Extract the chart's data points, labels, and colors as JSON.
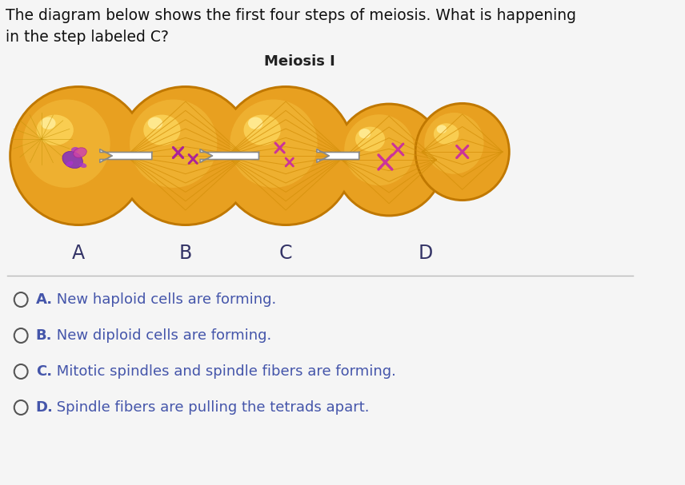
{
  "title_text": "The diagram below shows the first four steps of meiosis. What is happening\nin the step labeled C?",
  "subtitle": "Meiosis I",
  "bg_color": "#f5f5f5",
  "answers": [
    [
      "A.",
      " New haploid cells are forming."
    ],
    [
      "B.",
      " New diploid cells are forming."
    ],
    [
      "C.",
      " Mitotic spindles and spindle fibers are forming."
    ],
    [
      "D.",
      " Spindle fibers are pulling the tetrads apart."
    ]
  ],
  "labels": [
    "A",
    "B",
    "C",
    "D"
  ],
  "cell_orange_main": "#E8A020",
  "cell_orange_dark": "#C07800",
  "cell_orange_light": "#F5C040",
  "cell_orange_highlight": "#FFDA60",
  "spindle_color": "#D4900A",
  "chrom_pink": "#CC3399",
  "chrom_purple": "#8833AA",
  "answer_color": "#4455AA",
  "title_fontsize": 13.5,
  "subtitle_fontsize": 13,
  "label_fontsize": 17,
  "answer_fontsize": 13
}
